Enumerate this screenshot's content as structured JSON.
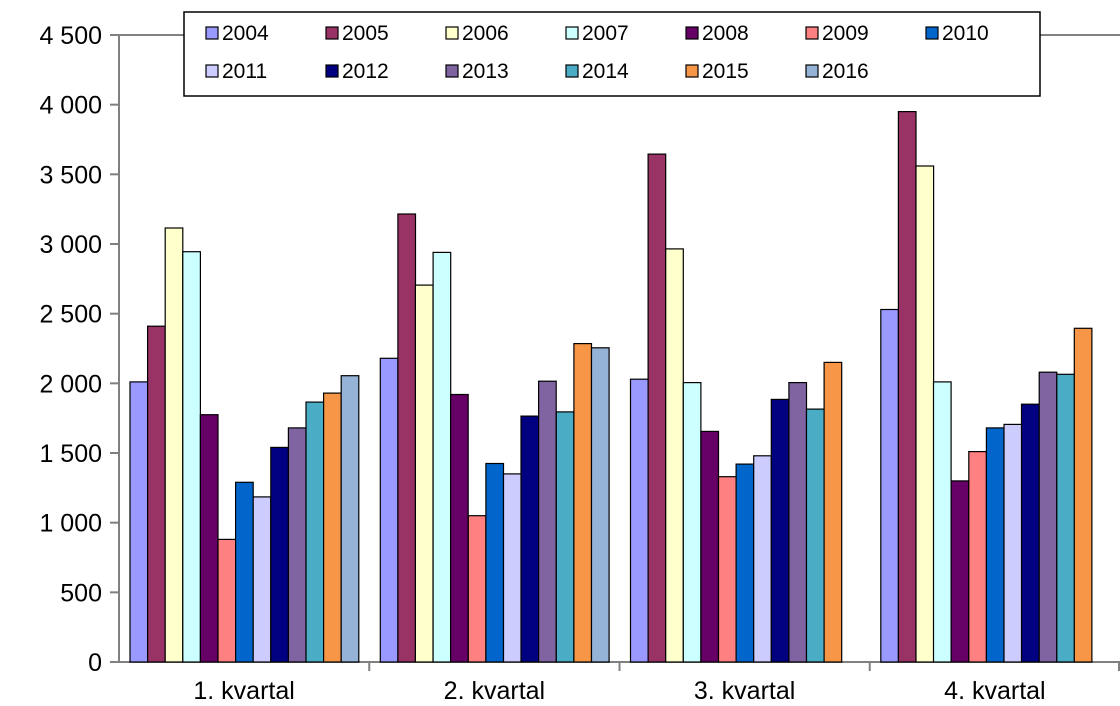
{
  "chart_data": {
    "type": "bar",
    "title": "",
    "xlabel": "",
    "ylabel": "",
    "ylim": [
      0,
      4500
    ],
    "yticks": [
      0,
      500,
      1000,
      1500,
      2000,
      2500,
      3000,
      3500,
      4000,
      4500
    ],
    "ytick_labels": [
      "0",
      "500",
      "1 000",
      "1 500",
      "2 000",
      "2 500",
      "3 000",
      "3 500",
      "4 000",
      "4 500"
    ],
    "grid": false,
    "legend_position": "top",
    "categories": [
      "1. kvartal",
      "2. kvartal",
      "3. kvartal",
      "4. kvartal"
    ],
    "series": [
      {
        "name": "2004",
        "color": "#9999FF",
        "values": [
          2010,
          2180,
          2030,
          2530
        ]
      },
      {
        "name": "2005",
        "color": "#993366",
        "values": [
          2410,
          3215,
          3645,
          3950
        ]
      },
      {
        "name": "2006",
        "color": "#FFFFCC",
        "values": [
          3115,
          2705,
          2965,
          3560
        ]
      },
      {
        "name": "2007",
        "color": "#CCFFFF",
        "values": [
          2945,
          2940,
          2005,
          2010
        ]
      },
      {
        "name": "2008",
        "color": "#660066",
        "values": [
          1775,
          1920,
          1655,
          1300
        ]
      },
      {
        "name": "2009",
        "color": "#FF8080",
        "values": [
          880,
          1050,
          1330,
          1510
        ]
      },
      {
        "name": "2010",
        "color": "#0066CC",
        "values": [
          1290,
          1425,
          1420,
          1680
        ]
      },
      {
        "name": "2011",
        "color": "#CCCCFF",
        "values": [
          1185,
          1350,
          1480,
          1705
        ]
      },
      {
        "name": "2012",
        "color": "#000080",
        "values": [
          1540,
          1765,
          1885,
          1850
        ]
      },
      {
        "name": "2013",
        "color": "#8064A2",
        "values": [
          1680,
          2015,
          2005,
          2080
        ]
      },
      {
        "name": "2014",
        "color": "#4BACC6",
        "values": [
          1865,
          1795,
          1815,
          2065
        ]
      },
      {
        "name": "2015",
        "color": "#F79646",
        "values": [
          1930,
          2285,
          2150,
          2395
        ]
      },
      {
        "name": "2016",
        "color": "#95B3D7",
        "values": [
          2055,
          2255,
          null,
          null
        ]
      }
    ]
  }
}
